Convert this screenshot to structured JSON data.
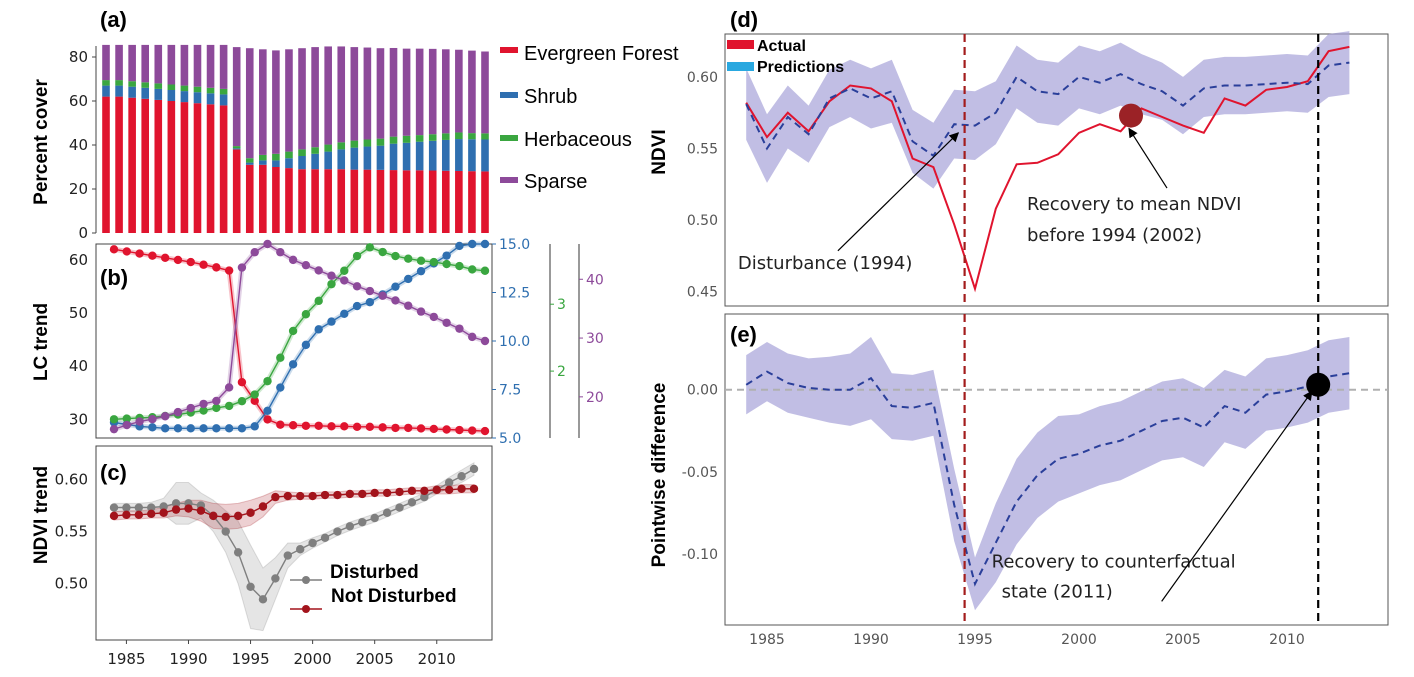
{
  "colors": {
    "evergreen": "#e0142e",
    "shrub": "#2f6fb0",
    "herbaceous": "#3aa640",
    "sparse": "#8d4a9a",
    "disturbed": "#7f7f7f",
    "not_disturbed": "#a3141c",
    "actual": "#e0142e",
    "predictions": "#2a3f9a",
    "band": "#a7a3d8",
    "disturbance_line": "#a31c1c",
    "recovery_line": "#000000",
    "zero_line": "#b0b0b0"
  },
  "chart_data": [
    {
      "id": "a",
      "panel_label": "(a)",
      "type": "bar",
      "stacked": true,
      "ylabel": "Percent cover",
      "ylim": [
        0,
        85
      ],
      "yticks": [
        0,
        20,
        40,
        60,
        80
      ],
      "x": [
        1984,
        1985,
        1986,
        1987,
        1988,
        1989,
        1990,
        1991,
        1992,
        1993,
        1994,
        1995,
        1996,
        1997,
        1998,
        1999,
        2000,
        2001,
        2002,
        2003,
        2004,
        2005,
        2006,
        2007,
        2008,
        2009,
        2010,
        2011,
        2012,
        2013
      ],
      "series": [
        {
          "name": "Evergreen Forest",
          "color_key": "evergreen",
          "values": [
            62,
            62,
            61.5,
            61,
            60.5,
            60,
            59.5,
            59,
            58.5,
            58,
            38,
            31,
            31,
            30,
            29.5,
            29,
            29,
            29,
            29,
            28.8,
            28.8,
            28.7,
            28.6,
            28.5,
            28.5,
            28.4,
            28.3,
            28.2,
            28.1,
            28
          ]
        },
        {
          "name": "Shrub",
          "color_key": "shrub",
          "values": [
            5,
            5,
            5,
            5,
            5,
            5,
            5,
            5,
            5,
            5,
            0.5,
            1,
            2,
            3,
            4.5,
            6,
            7,
            8,
            9,
            10,
            10.5,
            11,
            12,
            12.5,
            13,
            13.5,
            14,
            14.5,
            14.5,
            14.5
          ]
        },
        {
          "name": "Herbaceous",
          "color_key": "herbaceous",
          "values": [
            2.5,
            2.5,
            2.5,
            2.5,
            2.5,
            2.5,
            2.5,
            2.5,
            2.5,
            2.5,
            1,
            2,
            2.5,
            3,
            3,
            3,
            3,
            3.2,
            3.2,
            3.2,
            3.2,
            3.2,
            3.2,
            3.2,
            3,
            3,
            3,
            3,
            2.8,
            2.8
          ]
        },
        {
          "name": "Sparse",
          "color_key": "sparse",
          "values": [
            16,
            16,
            16.5,
            17,
            17.5,
            18,
            18.5,
            19,
            19.5,
            20,
            45,
            50,
            48,
            47,
            46.5,
            46,
            45.5,
            44.6,
            43.6,
            42.5,
            41.8,
            41.1,
            40.3,
            39.6,
            39.3,
            38.8,
            38.2,
            37.6,
            37.5,
            37.2
          ]
        }
      ],
      "legend": [
        "Evergreen Forest",
        "Shrub",
        "Herbaceous",
        "Sparse"
      ],
      "legend_placement": "right"
    },
    {
      "id": "b",
      "panel_label": "(b)",
      "type": "line",
      "ylabel": "LC trend",
      "x": [
        1984,
        1985,
        1986,
        1987,
        1988,
        1989,
        1990,
        1991,
        1992,
        1993,
        1994,
        1995,
        1996,
        1997,
        1998,
        1999,
        2000,
        2001,
        2002,
        2003,
        2004,
        2005,
        2006,
        2007,
        2008,
        2009,
        2010,
        2011,
        2012,
        2013
      ],
      "axes": [
        {
          "side": "left",
          "ylim": [
            26.5,
            63
          ],
          "yticks": [
            30,
            40,
            50,
            60
          ],
          "tick_labels": [
            "30",
            "40",
            "50",
            "60"
          ],
          "color_key": null
        },
        {
          "side": "right",
          "ylim": [
            5.0,
            15.0
          ],
          "yticks": [
            5.0,
            7.5,
            10.0,
            12.5,
            15.0
          ],
          "tick_labels": [
            "5.0",
            "7.5",
            "10.0",
            "12.5",
            "15.0"
          ],
          "color_key": "shrub"
        },
        {
          "side": "right2",
          "ylim": [
            1,
            3.9
          ],
          "yticks": [
            2,
            3
          ],
          "tick_labels": [
            "2",
            "3"
          ],
          "color_key": "herbaceous"
        },
        {
          "side": "right3",
          "ylim": [
            13,
            46
          ],
          "yticks": [
            20,
            30,
            40
          ],
          "tick_labels": [
            "20",
            "30",
            "40"
          ],
          "color_key": "sparse"
        }
      ],
      "series": [
        {
          "name": "Evergreen Forest",
          "color_key": "evergreen",
          "axis": 0,
          "values": [
            62,
            61.6,
            61.2,
            60.8,
            60.4,
            60,
            59.6,
            59.1,
            58.6,
            58,
            37,
            33.5,
            30,
            29,
            28.9,
            28.8,
            28.8,
            28.7,
            28.7,
            28.6,
            28.6,
            28.5,
            28.4,
            28.4,
            28.3,
            28.2,
            28.1,
            28,
            27.9,
            27.8
          ]
        },
        {
          "name": "Shrub",
          "color_key": "shrub",
          "axis": 1,
          "values": [
            5.8,
            5.7,
            5.6,
            5.55,
            5.5,
            5.5,
            5.5,
            5.5,
            5.5,
            5.5,
            5.5,
            5.6,
            6.4,
            7.6,
            8.8,
            9.8,
            10.6,
            11.0,
            11.4,
            11.8,
            12.0,
            12.4,
            12.8,
            13.2,
            13.6,
            14.0,
            14.4,
            14.9,
            15.0,
            15.0
          ]
        },
        {
          "name": "Herbaceous",
          "color_key": "herbaceous",
          "axis": 2,
          "values": [
            1.28,
            1.29,
            1.3,
            1.31,
            1.33,
            1.35,
            1.38,
            1.41,
            1.45,
            1.48,
            1.55,
            1.65,
            1.85,
            2.2,
            2.6,
            2.85,
            3.05,
            3.3,
            3.5,
            3.72,
            3.85,
            3.78,
            3.72,
            3.68,
            3.65,
            3.63,
            3.6,
            3.57,
            3.52,
            3.5
          ]
        },
        {
          "name": "Sparse",
          "color_key": "sparse",
          "axis": 3,
          "values": [
            14.5,
            15.2,
            15.8,
            16.2,
            16.7,
            17.4,
            18.1,
            18.8,
            19.3,
            21.6,
            42,
            44.6,
            46,
            44.6,
            43.3,
            42.4,
            41.5,
            40.6,
            39.8,
            38.8,
            38,
            37.2,
            36.4,
            35.5,
            34.5,
            33.6,
            32.6,
            31.6,
            30.2,
            29.5
          ]
        }
      ]
    },
    {
      "id": "c",
      "panel_label": "(c)",
      "type": "line",
      "ylabel": "NDVI trend",
      "ylim": [
        0.446,
        0.632
      ],
      "yticks": [
        0.5,
        0.55,
        0.6
      ],
      "tick_labels": [
        "0.50",
        "0.55",
        "0.60"
      ],
      "xticks": [
        1985,
        1990,
        1995,
        2000,
        2005,
        2010
      ],
      "x": [
        1984,
        1985,
        1986,
        1987,
        1988,
        1989,
        1990,
        1991,
        1992,
        1993,
        1994,
        1995,
        1996,
        1997,
        1998,
        1999,
        2000,
        2001,
        2002,
        2003,
        2004,
        2005,
        2006,
        2007,
        2008,
        2009,
        2010,
        2011,
        2012,
        2013
      ],
      "series": [
        {
          "name": "Disturbed",
          "color_key": "disturbed",
          "values": [
            0.573,
            0.573,
            0.573,
            0.573,
            0.574,
            0.577,
            0.577,
            0.575,
            0.565,
            0.55,
            0.53,
            0.497,
            0.485,
            0.505,
            0.527,
            0.533,
            0.539,
            0.544,
            0.55,
            0.555,
            0.559,
            0.563,
            0.568,
            0.573,
            0.578,
            0.583,
            0.59,
            0.597,
            0.603,
            0.61
          ],
          "band_halfwidth": [
            0.004,
            0.004,
            0.004,
            0.005,
            0.008,
            0.02,
            0.02,
            0.012,
            0.015,
            0.02,
            0.03,
            0.04,
            0.03,
            0.02,
            0.012,
            0.006,
            0.005,
            0.004,
            0.004,
            0.004,
            0.004,
            0.004,
            0.004,
            0.004,
            0.004,
            0.004,
            0.004,
            0.005,
            0.006,
            0.006
          ]
        },
        {
          "name": "Not Disturbed",
          "color_key": "not_disturbed",
          "values": [
            0.565,
            0.566,
            0.566,
            0.567,
            0.568,
            0.571,
            0.572,
            0.57,
            0.565,
            0.564,
            0.565,
            0.568,
            0.574,
            0.583,
            0.584,
            0.584,
            0.584,
            0.585,
            0.585,
            0.586,
            0.586,
            0.587,
            0.587,
            0.588,
            0.589,
            0.589,
            0.59,
            0.59,
            0.591,
            0.591
          ],
          "band_halfwidth": [
            0.004,
            0.004,
            0.004,
            0.004,
            0.005,
            0.006,
            0.008,
            0.01,
            0.012,
            0.012,
            0.012,
            0.012,
            0.01,
            0.006,
            0.004,
            0.003,
            0.003,
            0.003,
            0.003,
            0.003,
            0.003,
            0.003,
            0.003,
            0.003,
            0.003,
            0.003,
            0.004,
            0.004,
            0.004,
            0.004
          ]
        }
      ],
      "legend": [
        "Disturbed",
        "Not Disturbed"
      ],
      "legend_placement": "bottom-right"
    },
    {
      "id": "d",
      "panel_label": "(d)",
      "type": "line",
      "ylabel": "NDVI",
      "ylim": [
        0.44,
        0.63
      ],
      "yticks": [
        0.45,
        0.5,
        0.55,
        0.6
      ],
      "tick_labels": [
        "0.45",
        "0.50",
        "0.55",
        "0.60"
      ],
      "x": [
        1984,
        1985,
        1986,
        1987,
        1988,
        1989,
        1990,
        1991,
        1992,
        1993,
        1994,
        1995,
        1996,
        1997,
        1998,
        1999,
        2000,
        2001,
        2002,
        2003,
        2004,
        2005,
        2006,
        2007,
        2008,
        2009,
        2010,
        2011,
        2012,
        2013
      ],
      "series": [
        {
          "name": "Actual",
          "color_key": "actual",
          "values": [
            0.582,
            0.558,
            0.575,
            0.562,
            0.583,
            0.594,
            0.592,
            0.583,
            0.543,
            0.537,
            0.497,
            0.452,
            0.508,
            0.539,
            0.54,
            0.546,
            0.561,
            0.567,
            0.562,
            0.578,
            0.572,
            0.566,
            0.561,
            0.585,
            0.58,
            0.591,
            0.593,
            0.597,
            0.618,
            0.621
          ]
        },
        {
          "name": "Predictions",
          "color_key": "predictions",
          "values": [
            0.581,
            0.55,
            0.572,
            0.56,
            0.585,
            0.592,
            0.585,
            0.59,
            0.555,
            0.545,
            0.567,
            0.566,
            0.575,
            0.6,
            0.59,
            0.588,
            0.6,
            0.596,
            0.602,
            0.595,
            0.59,
            0.58,
            0.592,
            0.594,
            0.594,
            0.595,
            0.596,
            0.595,
            0.608,
            0.61
          ],
          "band_halfwidth": [
            0.025,
            0.024,
            0.022,
            0.02,
            0.02,
            0.02,
            0.021,
            0.022,
            0.022,
            0.023,
            0.024,
            0.024,
            0.022,
            0.022,
            0.022,
            0.022,
            0.022,
            0.022,
            0.022,
            0.021,
            0.02,
            0.02,
            0.02,
            0.02,
            0.02,
            0.02,
            0.02,
            0.02,
            0.022,
            0.022
          ]
        }
      ],
      "legend": [
        "Actual",
        "Predictions"
      ],
      "legend_placement": "top-left",
      "vlines": [
        {
          "x": 1994.5,
          "color_key": "disturbance_line"
        },
        {
          "x": 2011.5,
          "color_key": "recovery_line"
        }
      ],
      "markers": [
        {
          "x": 2002.5,
          "y": 0.573,
          "color": "#9b2226"
        }
      ],
      "annotations": [
        {
          "lines": [
            "Disturbance (1994)"
          ],
          "x": 1983.6,
          "y": 0.466,
          "arrow_to": [
            1994.2,
            0.561
          ]
        },
        {
          "lines": [
            "Recovery to mean NDVI",
            "before 1994 (2002)"
          ],
          "x": 1997.5,
          "y": 0.507,
          "arrow_to": [
            2002.4,
            0.564
          ]
        }
      ]
    },
    {
      "id": "e",
      "panel_label": "(e)",
      "type": "line",
      "ylabel": "Pointwise difference",
      "ylim": [
        -0.143,
        0.046
      ],
      "yticks": [
        -0.1,
        -0.05,
        0.0
      ],
      "tick_labels": [
        "-0.10",
        "-0.05",
        "0.00"
      ],
      "xticks": [
        1985,
        1990,
        1995,
        2000,
        2005,
        2010
      ],
      "x": [
        1984,
        1985,
        1986,
        1987,
        1988,
        1989,
        1990,
        1991,
        1992,
        1993,
        1994,
        1995,
        1996,
        1997,
        1998,
        1999,
        2000,
        2001,
        2002,
        2003,
        2004,
        2005,
        2006,
        2007,
        2008,
        2009,
        2010,
        2011,
        2012,
        2013
      ],
      "series": [
        {
          "name": "Pointwise difference",
          "color_key": "predictions",
          "values": [
            0.003,
            0.011,
            0.004,
            0.001,
            0.0,
            0.0,
            0.007,
            -0.01,
            -0.011,
            -0.008,
            -0.07,
            -0.118,
            -0.093,
            -0.068,
            -0.052,
            -0.042,
            -0.039,
            -0.034,
            -0.031,
            -0.025,
            -0.019,
            -0.017,
            -0.023,
            -0.01,
            -0.014,
            -0.003,
            -0.001,
            0.002,
            0.008,
            0.01
          ],
          "band_halfwidth": [
            0.018,
            0.018,
            0.018,
            0.018,
            0.02,
            0.022,
            0.025,
            0.02,
            0.02,
            0.02,
            0.022,
            0.016,
            0.024,
            0.026,
            0.026,
            0.026,
            0.024,
            0.024,
            0.024,
            0.024,
            0.024,
            0.024,
            0.024,
            0.022,
            0.022,
            0.022,
            0.022,
            0.022,
            0.022,
            0.022
          ]
        }
      ],
      "hlines": [
        {
          "y": 0.0,
          "color_key": "zero_line"
        }
      ],
      "vlines": [
        {
          "x": 1994.5,
          "color_key": "disturbance_line"
        },
        {
          "x": 2011.5,
          "color_key": "recovery_line"
        }
      ],
      "markers": [
        {
          "x": 2011.5,
          "y": 0.003,
          "color": "#000000"
        }
      ],
      "annotations": [
        {
          "lines": [
            "Recovery to counterfactual",
            "state (2011)"
          ],
          "x": 1995.8,
          "y": -0.108,
          "arrow_to": [
            2011.2,
            -0.001
          ]
        }
      ]
    }
  ]
}
